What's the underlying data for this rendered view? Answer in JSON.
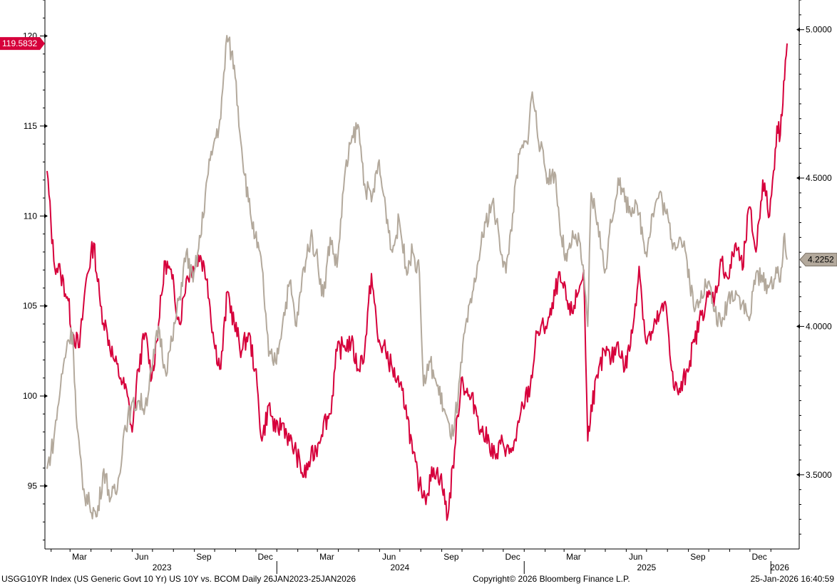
{
  "colors": {
    "yield_line": "#c8cfd5",
    "bcom_line": "#d6003b",
    "yield_tag": "#b3a99c",
    "bcom_tag": "#d6003b"
  },
  "footer": {
    "left": "USGG10YR Index (US Generic Govt 10 Yr) US 10Y vs. BCOM Daily 26JAN2023-25JAN2026",
    "center": "Copyright© 2026 Bloomberg Finance L.P.",
    "right": "25-Jan-2026 16:40:59"
  },
  "chart_data": {
    "type": "line",
    "x_range": [
      "2023-01-26",
      "2026-01-25"
    ],
    "x_month_ticks": [
      "Mar",
      "Jun",
      "Sep",
      "Dec",
      "Mar",
      "Jun",
      "Sep",
      "Dec",
      "Mar",
      "Jun",
      "Sep",
      "Dec"
    ],
    "x_year_labels": [
      "2023",
      "2024",
      "2025",
      "2026"
    ],
    "left_axis": {
      "ticks": [
        "95",
        "100",
        "105",
        "110",
        "115",
        "120"
      ],
      "range": [
        91.5,
        122
      ]
    },
    "right_axis": {
      "ticks": [
        "3.5000",
        "4.0000",
        "4.5000",
        "5.0000"
      ],
      "range": [
        3.25,
        5.1
      ]
    },
    "last_values": {
      "bcom": "119.5832",
      "yield": "4.2252"
    },
    "series": [
      {
        "axis": "left",
        "color": "#d6003b",
        "points": [
          [
            "2023-01-26",
            112.5
          ],
          [
            "2023-02-05",
            107.5
          ],
          [
            "2023-02-15",
            106.8
          ],
          [
            "2023-02-25",
            105.5
          ],
          [
            "2023-03-05",
            103.5
          ],
          [
            "2023-03-15",
            102.7
          ],
          [
            "2023-03-25",
            106.5
          ],
          [
            "2023-04-05",
            108.5
          ],
          [
            "2023-04-15",
            105.0
          ],
          [
            "2023-04-25",
            103.5
          ],
          [
            "2023-05-05",
            102.0
          ],
          [
            "2023-05-15",
            101.0
          ],
          [
            "2023-05-25",
            100.0
          ],
          [
            "2023-06-01",
            98.0
          ],
          [
            "2023-06-10",
            101.5
          ],
          [
            "2023-06-20",
            103.5
          ],
          [
            "2023-06-30",
            101.0
          ],
          [
            "2023-07-10",
            104.0
          ],
          [
            "2023-07-20",
            107.5
          ],
          [
            "2023-07-30",
            106.5
          ],
          [
            "2023-08-10",
            104.0
          ],
          [
            "2023-08-20",
            106.5
          ],
          [
            "2023-08-30",
            107.2
          ],
          [
            "2023-09-10",
            107.8
          ],
          [
            "2023-09-20",
            106.5
          ],
          [
            "2023-09-30",
            103.0
          ],
          [
            "2023-10-10",
            101.5
          ],
          [
            "2023-10-20",
            105.8
          ],
          [
            "2023-10-30",
            104.0
          ],
          [
            "2023-11-10",
            102.5
          ],
          [
            "2023-11-20",
            103.5
          ],
          [
            "2023-11-30",
            101.5
          ],
          [
            "2023-12-10",
            97.5
          ],
          [
            "2023-12-20",
            99.5
          ],
          [
            "2023-12-30",
            98.0
          ],
          [
            "2024-01-10",
            98.5
          ],
          [
            "2024-01-20",
            97.5
          ],
          [
            "2024-01-30",
            96.8
          ],
          [
            "2024-02-10",
            95.5
          ],
          [
            "2024-02-20",
            96.5
          ],
          [
            "2024-02-28",
            97.0
          ],
          [
            "2024-03-10",
            98.5
          ],
          [
            "2024-03-20",
            99.0
          ],
          [
            "2024-03-30",
            102.5
          ],
          [
            "2024-04-10",
            102.8
          ],
          [
            "2024-04-20",
            103.0
          ],
          [
            "2024-04-30",
            101.5
          ],
          [
            "2024-05-10",
            102.5
          ],
          [
            "2024-05-20",
            106.8
          ],
          [
            "2024-05-30",
            103.0
          ],
          [
            "2024-06-10",
            102.5
          ],
          [
            "2024-06-20",
            101.5
          ],
          [
            "2024-06-30",
            100.5
          ],
          [
            "2024-07-10",
            99.5
          ],
          [
            "2024-07-20",
            96.8
          ],
          [
            "2024-07-30",
            95.0
          ],
          [
            "2024-08-10",
            94.5
          ],
          [
            "2024-08-20",
            96.0
          ],
          [
            "2024-08-30",
            95.5
          ],
          [
            "2024-09-10",
            93.3
          ],
          [
            "2024-09-20",
            97.0
          ],
          [
            "2024-09-30",
            101.0
          ],
          [
            "2024-10-10",
            100.0
          ],
          [
            "2024-10-20",
            99.5
          ],
          [
            "2024-10-30",
            98.0
          ],
          [
            "2024-11-10",
            97.5
          ],
          [
            "2024-11-20",
            96.5
          ],
          [
            "2024-11-30",
            97.5
          ],
          [
            "2024-12-10",
            96.8
          ],
          [
            "2024-12-20",
            97.5
          ],
          [
            "2024-12-30",
            99.5
          ],
          [
            "2025-01-10",
            100.5
          ],
          [
            "2025-01-20",
            103.5
          ],
          [
            "2025-01-30",
            103.8
          ],
          [
            "2025-02-10",
            104.5
          ],
          [
            "2025-02-20",
            106.5
          ],
          [
            "2025-02-28",
            106.0
          ],
          [
            "2025-03-10",
            104.5
          ],
          [
            "2025-03-20",
            105.5
          ],
          [
            "2025-03-30",
            107.0
          ],
          [
            "2025-04-05",
            97.5
          ],
          [
            "2025-04-10",
            99.5
          ],
          [
            "2025-04-20",
            101.0
          ],
          [
            "2025-04-30",
            102.5
          ],
          [
            "2025-05-10",
            102.0
          ],
          [
            "2025-05-20",
            103.0
          ],
          [
            "2025-05-30",
            101.5
          ],
          [
            "2025-06-10",
            103.5
          ],
          [
            "2025-06-20",
            107.2
          ],
          [
            "2025-06-30",
            103.0
          ],
          [
            "2025-07-10",
            103.5
          ],
          [
            "2025-07-20",
            104.5
          ],
          [
            "2025-07-30",
            105.0
          ],
          [
            "2025-08-10",
            100.5
          ],
          [
            "2025-08-20",
            100.2
          ],
          [
            "2025-08-30",
            101.5
          ],
          [
            "2025-09-10",
            103.0
          ],
          [
            "2025-09-20",
            104.5
          ],
          [
            "2025-09-30",
            105.5
          ],
          [
            "2025-10-10",
            105.5
          ],
          [
            "2025-10-20",
            107.5
          ],
          [
            "2025-10-30",
            106.5
          ],
          [
            "2025-11-10",
            108.5
          ],
          [
            "2025-11-20",
            107.0
          ],
          [
            "2025-11-30",
            110.5
          ],
          [
            "2025-12-10",
            108.0
          ],
          [
            "2025-12-20",
            112.0
          ],
          [
            "2025-12-30",
            110.0
          ],
          [
            "2026-01-05",
            112.5
          ],
          [
            "2026-01-10",
            115.0
          ],
          [
            "2026-01-15",
            114.5
          ],
          [
            "2026-01-20",
            117.5
          ],
          [
            "2026-01-25",
            119.5832
          ]
        ]
      },
      {
        "axis": "right",
        "color": "#b3a99c",
        "points": [
          [
            "2023-01-26",
            3.52
          ],
          [
            "2023-02-05",
            3.62
          ],
          [
            "2023-02-15",
            3.8
          ],
          [
            "2023-02-25",
            3.95
          ],
          [
            "2023-03-05",
            3.98
          ],
          [
            "2023-03-10",
            3.7
          ],
          [
            "2023-03-20",
            3.45
          ],
          [
            "2023-03-30",
            3.4
          ],
          [
            "2023-04-10",
            3.36
          ],
          [
            "2023-04-20",
            3.52
          ],
          [
            "2023-04-30",
            3.42
          ],
          [
            "2023-05-10",
            3.45
          ],
          [
            "2023-05-20",
            3.65
          ],
          [
            "2023-05-30",
            3.72
          ],
          [
            "2023-06-10",
            3.75
          ],
          [
            "2023-06-20",
            3.73
          ],
          [
            "2023-06-30",
            3.85
          ],
          [
            "2023-07-10",
            4.0
          ],
          [
            "2023-07-20",
            3.85
          ],
          [
            "2023-07-30",
            3.95
          ],
          [
            "2023-08-10",
            4.1
          ],
          [
            "2023-08-20",
            4.25
          ],
          [
            "2023-08-30",
            4.15
          ],
          [
            "2023-09-10",
            4.3
          ],
          [
            "2023-09-20",
            4.5
          ],
          [
            "2023-09-30",
            4.62
          ],
          [
            "2023-10-10",
            4.7
          ],
          [
            "2023-10-19",
            4.98
          ],
          [
            "2023-10-30",
            4.88
          ],
          [
            "2023-11-10",
            4.6
          ],
          [
            "2023-11-20",
            4.42
          ],
          [
            "2023-11-30",
            4.3
          ],
          [
            "2023-12-10",
            4.2
          ],
          [
            "2023-12-20",
            3.9
          ],
          [
            "2023-12-30",
            3.88
          ],
          [
            "2024-01-10",
            4.02
          ],
          [
            "2024-01-20",
            4.15
          ],
          [
            "2024-01-30",
            4.0
          ],
          [
            "2024-02-10",
            4.2
          ],
          [
            "2024-02-20",
            4.3
          ],
          [
            "2024-02-28",
            4.25
          ],
          [
            "2024-03-10",
            4.1
          ],
          [
            "2024-03-20",
            4.3
          ],
          [
            "2024-03-30",
            4.2
          ],
          [
            "2024-04-10",
            4.5
          ],
          [
            "2024-04-20",
            4.62
          ],
          [
            "2024-04-30",
            4.68
          ],
          [
            "2024-05-10",
            4.48
          ],
          [
            "2024-05-20",
            4.42
          ],
          [
            "2024-05-30",
            4.55
          ],
          [
            "2024-06-10",
            4.4
          ],
          [
            "2024-06-20",
            4.25
          ],
          [
            "2024-06-30",
            4.36
          ],
          [
            "2024-07-10",
            4.2
          ],
          [
            "2024-07-20",
            4.25
          ],
          [
            "2024-07-30",
            4.18
          ],
          [
            "2024-08-05",
            3.8
          ],
          [
            "2024-08-15",
            3.88
          ],
          [
            "2024-08-25",
            3.8
          ],
          [
            "2024-09-05",
            3.72
          ],
          [
            "2024-09-15",
            3.62
          ],
          [
            "2024-09-25",
            3.75
          ],
          [
            "2024-10-05",
            3.98
          ],
          [
            "2024-10-15",
            4.08
          ],
          [
            "2024-10-25",
            4.22
          ],
          [
            "2024-11-05",
            4.35
          ],
          [
            "2024-11-15",
            4.42
          ],
          [
            "2024-11-25",
            4.3
          ],
          [
            "2024-12-05",
            4.18
          ],
          [
            "2024-12-15",
            4.38
          ],
          [
            "2024-12-25",
            4.58
          ],
          [
            "2025-01-05",
            4.62
          ],
          [
            "2025-01-13",
            4.79
          ],
          [
            "2025-01-25",
            4.6
          ],
          [
            "2025-02-05",
            4.5
          ],
          [
            "2025-02-15",
            4.52
          ],
          [
            "2025-02-25",
            4.3
          ],
          [
            "2025-03-05",
            4.22
          ],
          [
            "2025-03-15",
            4.3
          ],
          [
            "2025-03-25",
            4.28
          ],
          [
            "2025-04-05",
            4.0
          ],
          [
            "2025-04-10",
            4.45
          ],
          [
            "2025-04-20",
            4.35
          ],
          [
            "2025-04-30",
            4.18
          ],
          [
            "2025-05-10",
            4.35
          ],
          [
            "2025-05-20",
            4.5
          ],
          [
            "2025-05-30",
            4.42
          ],
          [
            "2025-06-10",
            4.4
          ],
          [
            "2025-06-20",
            4.38
          ],
          [
            "2025-06-30",
            4.25
          ],
          [
            "2025-07-10",
            4.38
          ],
          [
            "2025-07-20",
            4.45
          ],
          [
            "2025-07-30",
            4.38
          ],
          [
            "2025-08-10",
            4.28
          ],
          [
            "2025-08-20",
            4.3
          ],
          [
            "2025-08-30",
            4.22
          ],
          [
            "2025-09-10",
            4.05
          ],
          [
            "2025-09-20",
            4.12
          ],
          [
            "2025-09-30",
            4.15
          ],
          [
            "2025-10-10",
            4.05
          ],
          [
            "2025-10-20",
            4.0
          ],
          [
            "2025-10-30",
            4.1
          ],
          [
            "2025-11-10",
            4.12
          ],
          [
            "2025-11-20",
            4.08
          ],
          [
            "2025-11-30",
            4.02
          ],
          [
            "2025-12-10",
            4.18
          ],
          [
            "2025-12-20",
            4.15
          ],
          [
            "2025-12-30",
            4.14
          ],
          [
            "2026-01-10",
            4.18
          ],
          [
            "2026-01-15",
            4.15
          ],
          [
            "2026-01-20",
            4.3
          ],
          [
            "2026-01-25",
            4.2252
          ]
        ]
      }
    ]
  }
}
